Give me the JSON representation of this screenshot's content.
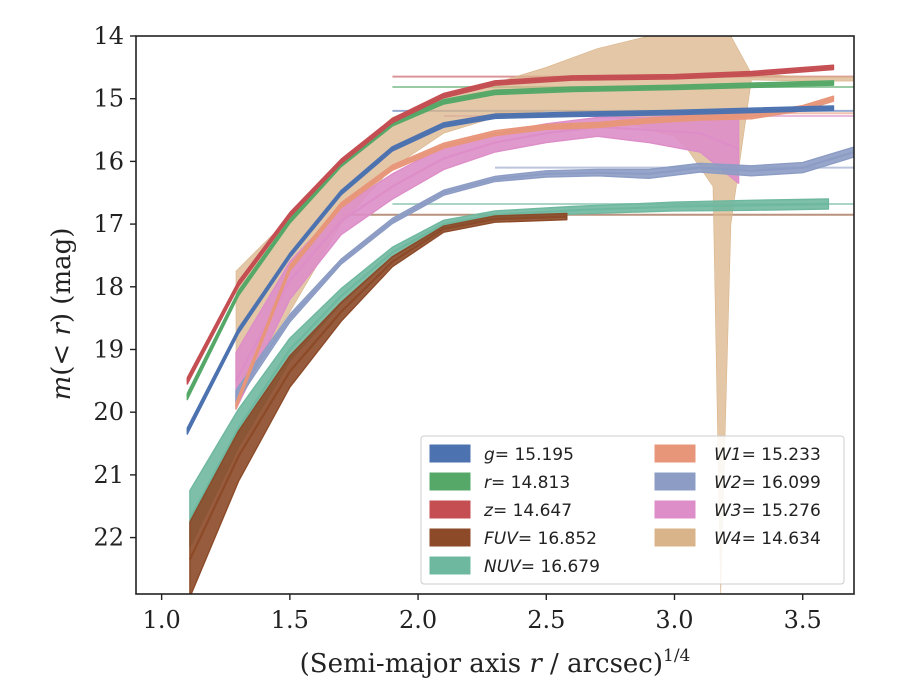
{
  "chart_data": {
    "type": "area",
    "xlabel": "(Semi-major axis r / arcsec)",
    "xlabel_parts": {
      "pre": "(Semi-major axis ",
      "var": "r",
      "post": " / arcsec)",
      "exponent": "1/4"
    },
    "ylabel": "m(< r) (mag)",
    "ylabel_parts": {
      "m": "m",
      "open": "(",
      "lt": "< ",
      "r": "r",
      "close": ")",
      "unit": " (mag)"
    },
    "xlim": [
      0.9,
      3.7
    ],
    "ylim": [
      22.9,
      14.0
    ],
    "y_inverted": true,
    "xticks": [
      1.0,
      1.5,
      2.0,
      2.5,
      3.0,
      3.5
    ],
    "xtick_labels": [
      "1.0",
      "1.5",
      "2.0",
      "2.5",
      "3.0",
      "3.5"
    ],
    "yticks": [
      14,
      15,
      16,
      17,
      18,
      19,
      20,
      21,
      22
    ],
    "ytick_labels": [
      "14",
      "15",
      "16",
      "17",
      "18",
      "19",
      "20",
      "21",
      "22"
    ],
    "grid": false,
    "legend_position": "lower-right",
    "legend_columns": 2,
    "series": [
      {
        "name": "g",
        "label_var": "g",
        "label_value": "= 15.195",
        "color": "#4c72b0",
        "asymptote": 15.195,
        "x": [
          1.1,
          1.3,
          1.5,
          1.7,
          1.9,
          2.1,
          2.3,
          2.6,
          3.0,
          3.62
        ],
        "y": [
          20.3,
          18.7,
          17.5,
          16.5,
          15.8,
          15.42,
          15.28,
          15.25,
          15.22,
          15.15
        ],
        "band_halfwidth": [
          0.05,
          0.04,
          0.03,
          0.03,
          0.03,
          0.03,
          0.03,
          0.03,
          0.03,
          0.03
        ]
      },
      {
        "name": "r",
        "label_var": "r",
        "label_value": "= 14.813",
        "color": "#55a868",
        "asymptote": 14.813,
        "x": [
          1.1,
          1.3,
          1.5,
          1.7,
          1.9,
          2.1,
          2.3,
          2.6,
          3.0,
          3.62
        ],
        "y": [
          19.75,
          18.1,
          16.95,
          16.05,
          15.4,
          15.05,
          14.9,
          14.85,
          14.82,
          14.75
        ],
        "band_halfwidth": [
          0.05,
          0.04,
          0.03,
          0.03,
          0.03,
          0.03,
          0.03,
          0.03,
          0.03,
          0.03
        ]
      },
      {
        "name": "z",
        "label_var": "z",
        "label_value": "= 14.647",
        "color": "#c44e52",
        "asymptote": 14.647,
        "x": [
          1.1,
          1.3,
          1.5,
          1.7,
          1.9,
          2.1,
          2.3,
          2.6,
          3.0,
          3.3,
          3.62
        ],
        "y": [
          19.5,
          17.95,
          16.85,
          16.0,
          15.35,
          14.95,
          14.75,
          14.67,
          14.65,
          14.6,
          14.5
        ],
        "band_halfwidth": [
          0.05,
          0.04,
          0.03,
          0.03,
          0.03,
          0.03,
          0.03,
          0.03,
          0.03,
          0.03,
          0.03
        ]
      },
      {
        "name": "FUV",
        "label_var": "FUV",
        "label_value": "= 16.852",
        "color": "#8c4a28",
        "asymptote": 16.852,
        "x": [
          1.11,
          1.3,
          1.5,
          1.7,
          1.9,
          2.1,
          2.3,
          2.58
        ],
        "y": [
          22.35,
          20.7,
          19.35,
          18.4,
          17.6,
          17.08,
          16.92,
          16.88
        ],
        "band_halfwidth": [
          0.6,
          0.4,
          0.25,
          0.15,
          0.08,
          0.05,
          0.05,
          0.05
        ]
      },
      {
        "name": "NUV",
        "label_var": "NUV",
        "label_value": "= 16.679",
        "color": "#6fb8a0",
        "asymptote": 16.679,
        "x": [
          1.11,
          1.3,
          1.5,
          1.7,
          1.9,
          2.1,
          2.3,
          2.6,
          3.0,
          3.3,
          3.6
        ],
        "y": [
          21.7,
          20.25,
          19.0,
          18.15,
          17.45,
          17.0,
          16.85,
          16.78,
          16.72,
          16.7,
          16.68
        ],
        "band_halfwidth": [
          0.45,
          0.3,
          0.18,
          0.12,
          0.08,
          0.06,
          0.06,
          0.06,
          0.07,
          0.08,
          0.08
        ]
      },
      {
        "name": "W1",
        "label_var": "W1",
        "label_value": "= 15.233",
        "color": "#e8967a",
        "asymptote": 15.233,
        "x": [
          1.29,
          1.5,
          1.7,
          1.9,
          2.1,
          2.3,
          2.5,
          2.7,
          2.9,
          3.1,
          3.3,
          3.5,
          3.62
        ],
        "y": [
          19.9,
          17.7,
          16.7,
          16.1,
          15.75,
          15.55,
          15.45,
          15.42,
          15.35,
          15.3,
          15.28,
          15.15,
          15.0
        ],
        "band_halfwidth": [
          0.05,
          0.04,
          0.04,
          0.04,
          0.04,
          0.04,
          0.04,
          0.04,
          0.04,
          0.04,
          0.04,
          0.04,
          0.04
        ]
      },
      {
        "name": "W2",
        "label_var": "W2",
        "label_value": "= 16.099",
        "color": "#8c9cc4",
        "asymptote": 16.099,
        "x": [
          1.29,
          1.5,
          1.7,
          1.9,
          2.1,
          2.3,
          2.5,
          2.7,
          2.9,
          3.1,
          3.3,
          3.5,
          3.7
        ],
        "y": [
          19.75,
          18.5,
          17.6,
          16.95,
          16.5,
          16.28,
          16.2,
          16.18,
          16.2,
          16.1,
          16.15,
          16.1,
          15.85
        ],
        "band_halfwidth": [
          0.1,
          0.06,
          0.04,
          0.04,
          0.04,
          0.04,
          0.05,
          0.05,
          0.07,
          0.07,
          0.08,
          0.08,
          0.08
        ]
      },
      {
        "name": "W3",
        "label_var": "W3",
        "label_value": "= 15.276",
        "color": "#dd8ec8",
        "asymptote": 15.276,
        "x": [
          1.29,
          1.5,
          1.7,
          1.9,
          2.1,
          2.3,
          2.5,
          2.7,
          2.9,
          3.1,
          3.25
        ],
        "y": [
          19.5,
          17.9,
          16.95,
          16.4,
          15.95,
          15.7,
          15.55,
          15.45,
          15.5,
          15.55,
          15.8
        ],
        "band_halfwidth": [
          0.45,
          0.3,
          0.22,
          0.2,
          0.18,
          0.15,
          0.15,
          0.15,
          0.2,
          0.3,
          0.55
        ]
      },
      {
        "name": "W4",
        "label_var": "W4",
        "label_value": "= 14.634",
        "color": "#d9b48a",
        "asymptote": 14.634,
        "x": [
          1.29,
          1.4,
          1.5,
          1.7,
          1.9,
          2.1,
          2.3,
          2.5,
          2.7,
          2.9,
          3.0,
          3.05,
          3.1,
          3.15,
          3.18,
          3.22,
          3.3,
          3.5,
          3.7
        ],
        "y_lower": [
          17.75,
          17.3,
          16.9,
          16.0,
          15.3,
          14.95,
          14.75,
          14.5,
          14.2,
          14.0,
          14.0,
          14.0,
          14.0,
          14.0,
          14.0,
          14.0,
          14.6,
          14.65,
          14.65
        ],
        "y_upper": [
          19.7,
          19.0,
          18.4,
          17.0,
          16.1,
          15.55,
          15.3,
          15.2,
          15.2,
          15.5,
          15.6,
          15.8,
          16.1,
          16.4,
          22.9,
          17.0,
          14.7,
          14.72,
          14.72
        ]
      }
    ]
  }
}
